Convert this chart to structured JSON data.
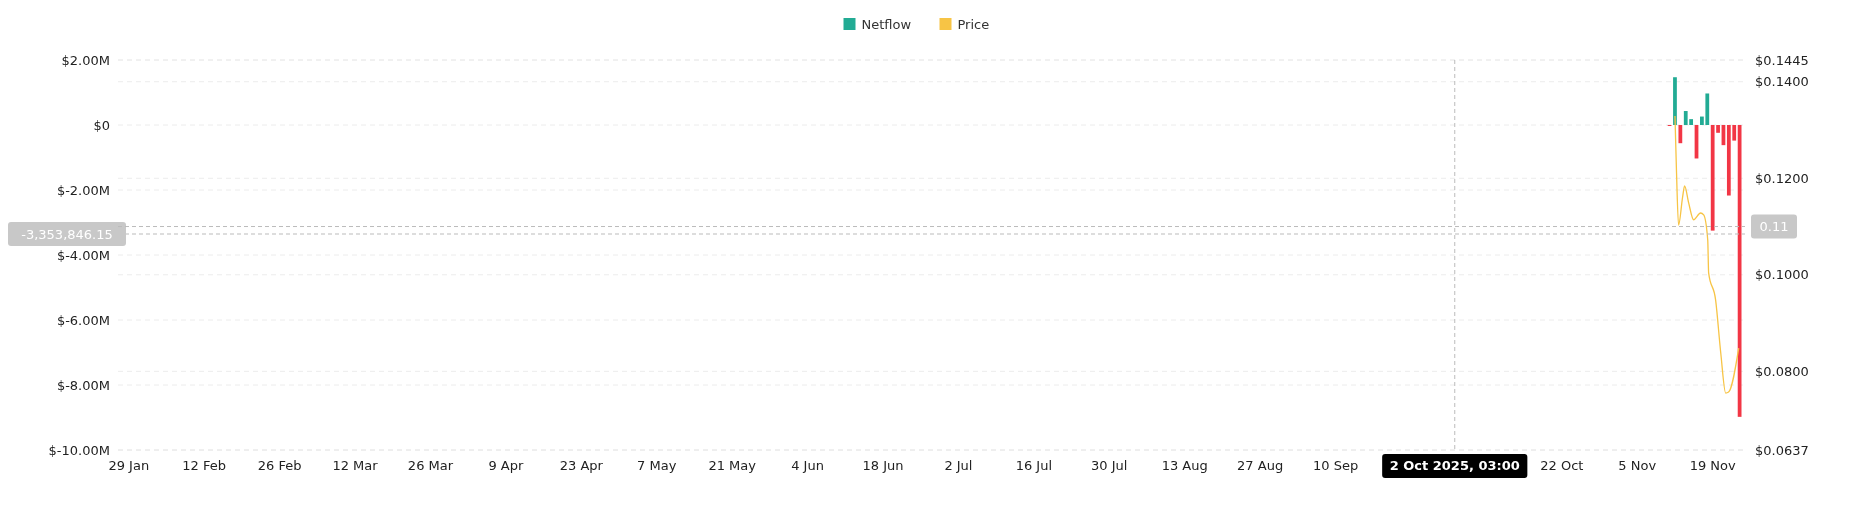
{
  "chart_data": {
    "type": "bar",
    "legend": "top",
    "grid": "y",
    "xlim": [
      "2025-01-27",
      "2025-11-25"
    ],
    "xticks": [
      {
        "value": "2025-01-29",
        "label": "29 Jan"
      },
      {
        "value": "2025-02-12",
        "label": "12 Feb"
      },
      {
        "value": "2025-02-26",
        "label": "26 Feb"
      },
      {
        "value": "2025-03-12",
        "label": "12 Mar"
      },
      {
        "value": "2025-03-26",
        "label": "26 Mar"
      },
      {
        "value": "2025-04-09",
        "label": "9 Apr"
      },
      {
        "value": "2025-04-23",
        "label": "23 Apr"
      },
      {
        "value": "2025-05-07",
        "label": "7 May"
      },
      {
        "value": "2025-05-21",
        "label": "21 May"
      },
      {
        "value": "2025-06-04",
        "label": "4 Jun"
      },
      {
        "value": "2025-06-18",
        "label": "18 Jun"
      },
      {
        "value": "2025-07-02",
        "label": "2 Jul"
      },
      {
        "value": "2025-07-16",
        "label": "16 Jul"
      },
      {
        "value": "2025-07-30",
        "label": "30 Jul"
      },
      {
        "value": "2025-08-13",
        "label": "13 Aug"
      },
      {
        "value": "2025-08-27",
        "label": "27 Aug"
      },
      {
        "value": "2025-09-10",
        "label": "10 Sep"
      },
      {
        "value": "2025-10-22",
        "label": "22 Oct"
      },
      {
        "value": "2025-11-05",
        "label": "5 Nov"
      },
      {
        "value": "2025-11-19",
        "label": "19 Nov"
      }
    ],
    "ylim": [
      -10000000,
      2000000
    ],
    "yticks": [
      {
        "value": 2000000,
        "label": "$2.00M"
      },
      {
        "value": 0,
        "label": "$0"
      },
      {
        "value": -2000000,
        "label": "$-2.00M"
      },
      {
        "value": -4000000,
        "label": "$-4.00M"
      },
      {
        "value": -6000000,
        "label": "$-6.00M"
      },
      {
        "value": -8000000,
        "label": "$-8.00M"
      },
      {
        "value": -10000000,
        "label": "$-10.00M"
      }
    ],
    "y2lim": [
      0.0637,
      0.1445
    ],
    "y2ticks": [
      {
        "value": 0.1445,
        "label": "$0.1445"
      },
      {
        "value": 0.14,
        "label": "$0.1400"
      },
      {
        "value": 0.12,
        "label": "$0.1200"
      },
      {
        "value": 0.1,
        "label": "$0.1000"
      },
      {
        "value": 0.08,
        "label": "$0.0800"
      },
      {
        "value": 0.0637,
        "label": "$0.0637"
      }
    ],
    "series": [
      {
        "name": "Netflow",
        "color": "#22ab94",
        "x": [
          "2025-11-11",
          "2025-11-12",
          "2025-11-13",
          "2025-11-14",
          "2025-11-15",
          "2025-11-16",
          "2025-11-17",
          "2025-11-18",
          "2025-11-19",
          "2025-11-20",
          "2025-11-21",
          "2025-11-22",
          "2025-11-23",
          "2025-11-24"
        ],
        "values": [
          -30000,
          1470000,
          -560000,
          430000,
          180000,
          -1030000,
          260000,
          970000,
          -3250000,
          -240000,
          -620000,
          -2170000,
          -480000,
          -8980000
        ],
        "colors": [
          "#f23645",
          "#22ab94",
          "#f23645",
          "#22ab94",
          "#22ab94",
          "#f23645",
          "#22ab94",
          "#22ab94",
          "#f23645",
          "#f23645",
          "#f23645",
          "#f23645",
          "#f23645",
          "#f23645"
        ]
      },
      {
        "name": "Price",
        "type": "line",
        "axis": "y2",
        "color": "#f7c445",
        "x": [
          "2025-11-12T00:00",
          "2025-11-12T07:00",
          "2025-11-12T16:00",
          "2025-11-13T10:00",
          "2025-11-13T19:00",
          "2025-11-14T13:00",
          "2025-11-15T11:00",
          "2025-11-16T18:00",
          "2025-11-17T08:00",
          "2025-11-18T02:00",
          "2025-11-18T06:00",
          "2025-11-19T13:00",
          "2025-11-20T12:00",
          "2025-11-21T10:00",
          "2025-11-21T23:00",
          "2025-11-23T20:00"
        ],
        "values": [
          0.1329,
          0.1211,
          0.1103,
          0.1161,
          0.1184,
          0.1149,
          0.1114,
          0.1128,
          0.1124,
          0.1072,
          0.1004,
          0.0948,
          0.0838,
          0.0755,
          0.0757,
          0.0848
        ]
      }
    ],
    "ref_lines": [
      {
        "axis": "x",
        "value": "2025-10-02T03:00",
        "label": "2 Oct 2025, 03:00"
      },
      {
        "axis": "y",
        "value": -3353846.15,
        "label": "-3,353,846.15"
      },
      {
        "axis": "y2",
        "value": 0.11,
        "label": "0.11"
      }
    ]
  }
}
